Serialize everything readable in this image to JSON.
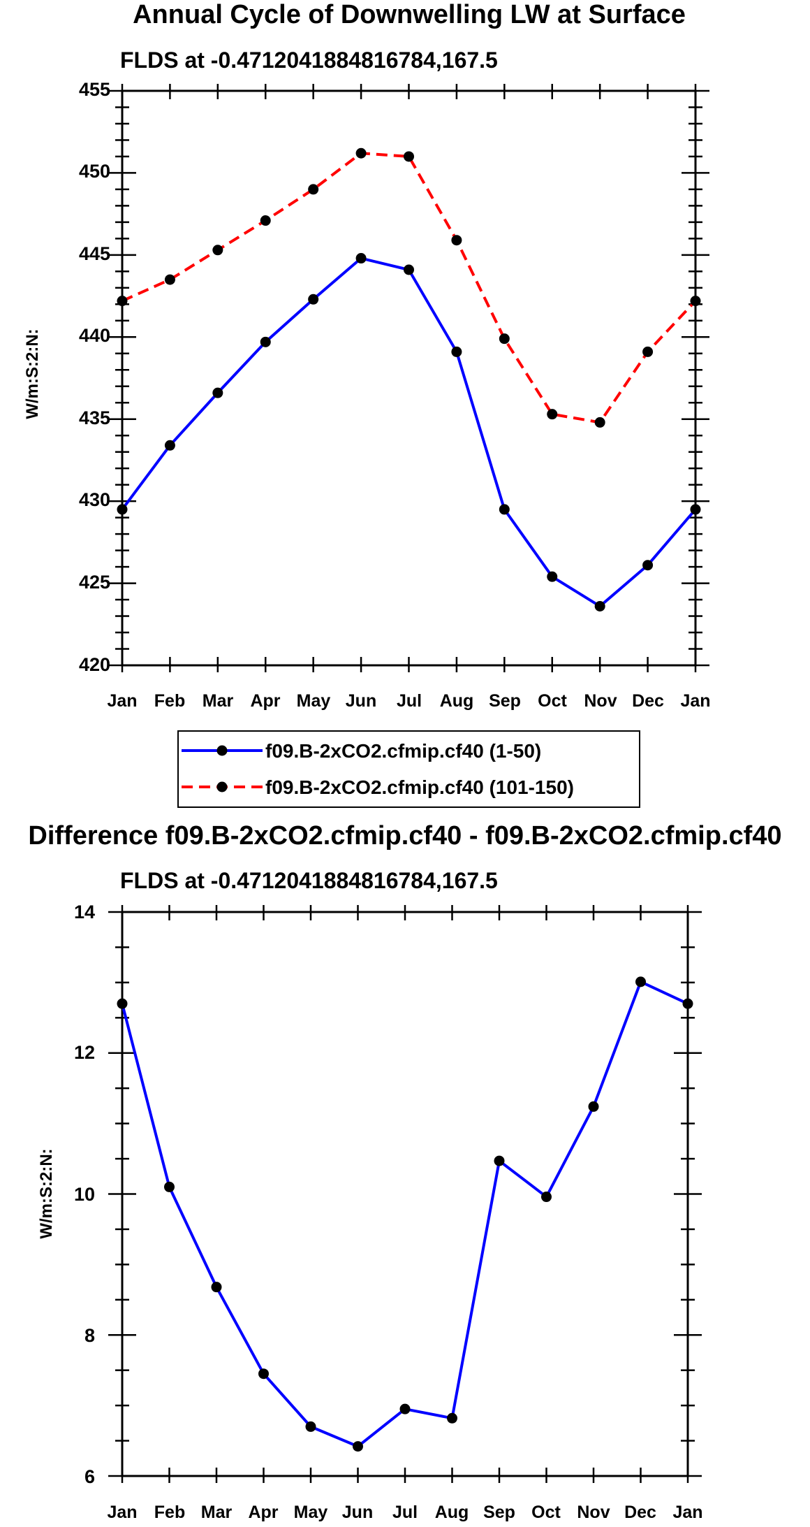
{
  "chart_data": [
    {
      "type": "line",
      "title": "Annual Cycle of Downwelling LW at Surface",
      "subtitle": "FLDS at -0.4712041884816784,167.5",
      "ylabel": "W/m:S:2:N:",
      "xlabel": "",
      "categories": [
        "Jan",
        "Feb",
        "Mar",
        "Apr",
        "May",
        "Jun",
        "Jul",
        "Aug",
        "Sep",
        "Oct",
        "Nov",
        "Dec",
        "Jan"
      ],
      "ylim": [
        420,
        455
      ],
      "yticks": [
        "420",
        "425",
        "430",
        "435",
        "440",
        "445",
        "450",
        "455"
      ],
      "series": [
        {
          "name": "f09.B-2xCO2.cfmip.cf40 (1-50)",
          "color": "#0000ff",
          "dash": "solid",
          "values": [
            429.5,
            433.4,
            436.6,
            439.7,
            442.3,
            444.8,
            444.1,
            439.1,
            429.5,
            425.4,
            423.6,
            426.1,
            429.5
          ]
        },
        {
          "name": "f09.B-2xCO2.cfmip.cf40 (101-150)",
          "color": "#ff0000",
          "dash": "dashed",
          "values": [
            442.2,
            443.5,
            445.3,
            447.1,
            449.0,
            451.2,
            451.0,
            445.9,
            439.9,
            435.3,
            434.8,
            439.1,
            442.2
          ]
        }
      ],
      "legend": "below"
    },
    {
      "type": "line",
      "title": "Difference f09.B-2xCO2.cfmip.cf40 - f09.B-2xCO2.cfmip.cf40",
      "subtitle": "FLDS at -0.4712041884816784,167.5",
      "ylabel": "W/m:S:2:N:",
      "xlabel": "",
      "categories": [
        "Jan",
        "Feb",
        "Mar",
        "Apr",
        "May",
        "Jun",
        "Jul",
        "Aug",
        "Sep",
        "Oct",
        "Nov",
        "Dec",
        "Jan"
      ],
      "ylim": [
        6,
        14
      ],
      "yticks": [
        "6",
        "8",
        "10",
        "12",
        "14"
      ],
      "series": [
        {
          "name": "Difference",
          "color": "#0000ff",
          "dash": "solid",
          "values": [
            12.7,
            10.1,
            8.68,
            7.45,
            6.7,
            6.42,
            6.95,
            6.82,
            10.47,
            9.96,
            11.24,
            13.01,
            12.7
          ]
        }
      ]
    }
  ]
}
